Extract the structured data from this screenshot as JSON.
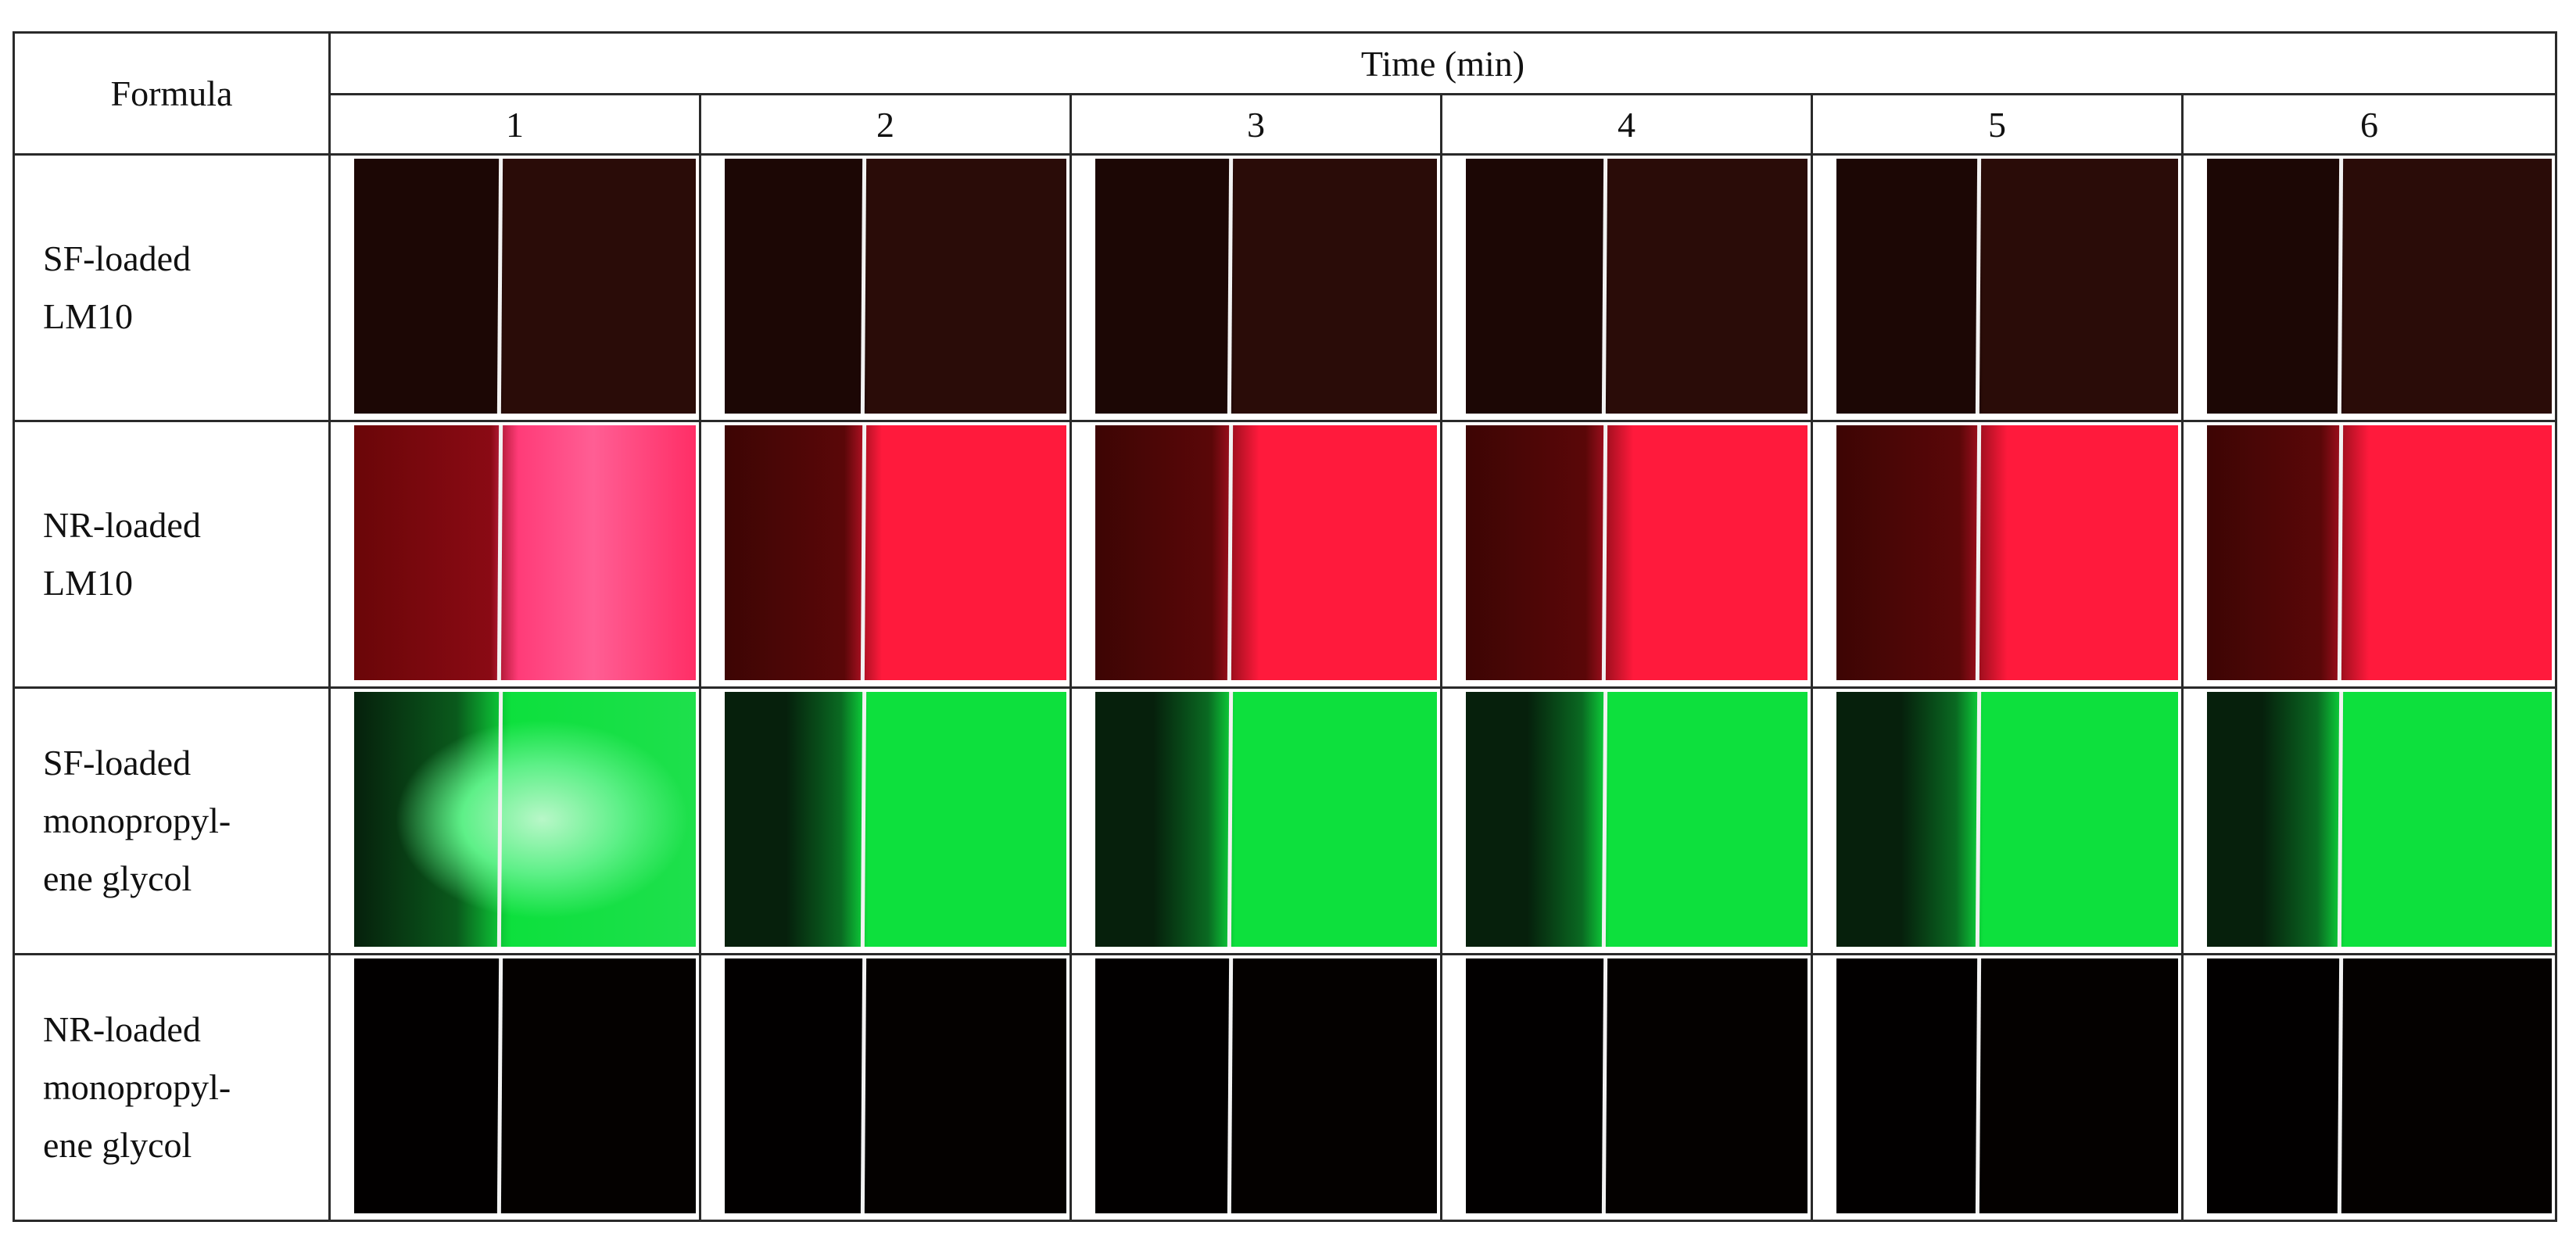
{
  "table": {
    "formula_header": "Formula",
    "time_header": "Time (min)",
    "time_columns": [
      "1",
      "2",
      "3",
      "4",
      "5",
      "6"
    ],
    "rows": [
      {
        "label_lines": [
          "SF-loaded",
          "LM10"
        ],
        "image_tone": "dark-brown",
        "colors": {
          "left": "#1c0705",
          "right": "#2a0c08"
        }
      },
      {
        "label_lines": [
          "NR-loaded",
          "LM10"
        ],
        "image_tone": "red",
        "colors": {
          "left": "#3d0504",
          "right": "#ff1a3c"
        }
      },
      {
        "label_lines": [
          "SF-loaded",
          "monopropyl-",
          "ene glycol"
        ],
        "image_tone": "green",
        "colors": {
          "left": "#06200c",
          "right": "#0de03d"
        }
      },
      {
        "label_lines": [
          "NR-loaded",
          "monopropyl-",
          "ene glycol"
        ],
        "image_tone": "black",
        "colors": {
          "left": "#020000",
          "right": "#040100"
        }
      }
    ]
  }
}
